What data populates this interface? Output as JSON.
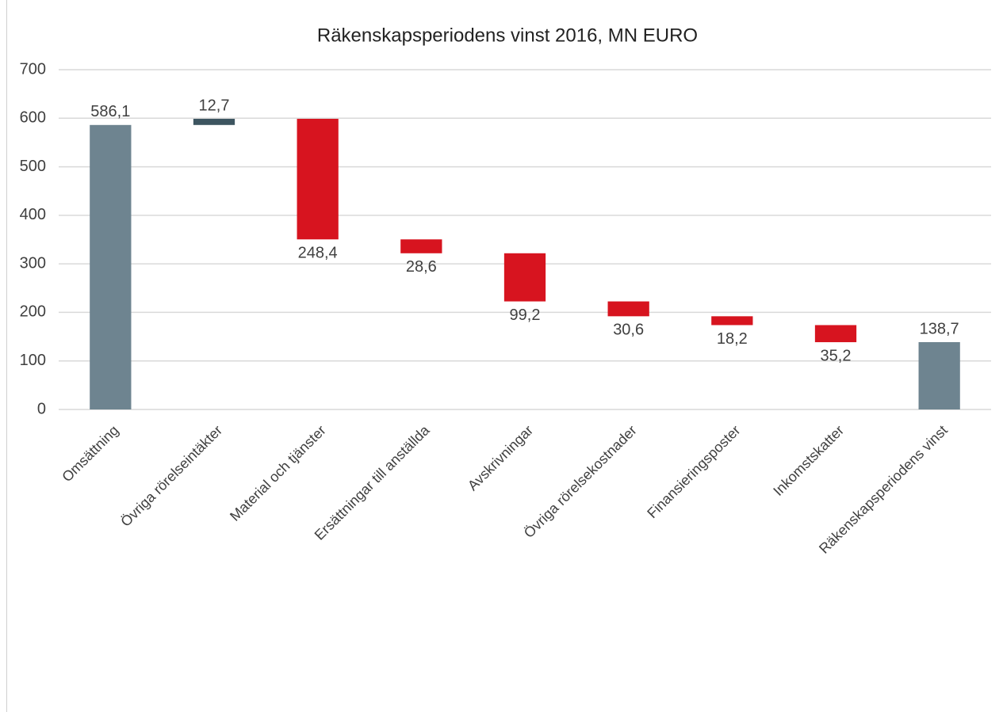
{
  "chart_data": {
    "type": "waterfall",
    "title": "Räkenskapsperiodens vinst 2016, MN EURO",
    "categories": [
      "Omsättning",
      "Övriga rörelseintäkter",
      "Material och tjänster",
      "Ersättningar till anställda",
      "Avskrivningar",
      "Övriga rörelsekostnader",
      "Finansieringsposter",
      "Inkomstskatter",
      "Räkenskapsperiodens vinst"
    ],
    "values": [
      586.1,
      12.7,
      -248.4,
      -28.6,
      -99.2,
      -30.6,
      -18.2,
      -35.2,
      138.7
    ],
    "value_labels": [
      "586,1",
      "12,7",
      "248,4",
      "28,6",
      "99,2",
      "30,6",
      "18,2",
      "35,2",
      "138,7"
    ],
    "measure": [
      "absolute",
      "relative",
      "relative",
      "relative",
      "relative",
      "relative",
      "relative",
      "relative",
      "absolute"
    ],
    "colors": {
      "absolute": "#6e8490",
      "increase": "#3d5560",
      "decrease": "#d7141f"
    },
    "ylim": [
      0,
      700
    ],
    "yticks": [
      0,
      100,
      200,
      300,
      400,
      500,
      600,
      700
    ],
    "grid": true
  }
}
